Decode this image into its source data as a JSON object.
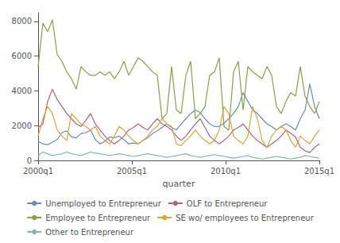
{
  "chart_data": {
    "type": "line",
    "xlabel": "quarter",
    "x": [
      0,
      1.016949,
      2.033898,
      3.050847,
      4.067797,
      5.084746,
      6.101695,
      7.118644,
      8.135593,
      9.152542,
      10.169492,
      11.186441,
      12.20339,
      13.220339,
      14.237288,
      15.254237,
      16.271186,
      17.288136,
      18.305085,
      19.322034,
      20.338983,
      21.355932,
      22.372881,
      23.389831,
      24.40678,
      25.423729,
      26.440678,
      27.457627,
      28.474576,
      29.491525,
      30.508475,
      31.525424,
      32.542373,
      33.559322,
      34.576271,
      35.59322,
      36.610169,
      37.627119,
      38.644068,
      39.661017,
      40.677966,
      41.694915,
      42.711864,
      43.728814,
      44.745763,
      45.762712,
      46.779661,
      47.79661,
      48.813559,
      49.830508,
      50.847458,
      51.864407,
      52.881356,
      53.898305,
      54.915254,
      55.932203,
      56.949153,
      57.966102,
      58.983051,
      60
    ],
    "xlim": [
      0,
      60
    ],
    "xticks": [
      {
        "value": 0,
        "label": "2000q1"
      },
      {
        "value": 20,
        "label": "2005q1"
      },
      {
        "value": 40,
        "label": "2010q1"
      },
      {
        "value": 60,
        "label": "2015q1"
      }
    ],
    "ylim": [
      0,
      8500
    ],
    "yticks": [
      0,
      2000,
      4000,
      6000,
      8000
    ],
    "grid": false,
    "legend": "bottom",
    "series": [
      {
        "name": "Unemployed to Entrepreneur",
        "color": "#6b8cba",
        "values": [
          1100,
          950,
          900,
          1050,
          1200,
          1600,
          1700,
          1350,
          1300,
          1550,
          1600,
          1750,
          1200,
          950,
          1100,
          1350,
          1300,
          1400,
          1200,
          950,
          1000,
          950,
          1150,
          1300,
          1550,
          1700,
          1900,
          2100,
          1900,
          1750,
          2100,
          2400,
          2700,
          2900,
          2750,
          2400,
          2100,
          1950,
          1950,
          2150,
          2400,
          2700,
          3100,
          3900,
          3400,
          2900,
          2700,
          2400,
          2100,
          1950,
          1750,
          1950,
          2100,
          1950,
          1750,
          2400,
          2900,
          4400,
          3100,
          2400
        ]
      },
      {
        "name": "OLF to Entrepreneur",
        "color": "#b06080",
        "values": [
          1900,
          2100,
          3400,
          4100,
          3500,
          3100,
          2700,
          2400,
          2100,
          1950,
          2300,
          2700,
          2100,
          1750,
          1400,
          1150,
          950,
          1150,
          1400,
          1750,
          1900,
          2100,
          1900,
          1750,
          2100,
          2400,
          2100,
          1950,
          1750,
          1400,
          1150,
          1400,
          1750,
          2100,
          2400,
          1900,
          1400,
          1150,
          950,
          1150,
          1400,
          1750,
          1900,
          2100,
          1750,
          1400,
          1150,
          950,
          750,
          950,
          1150,
          1400,
          1750,
          1550,
          1350,
          750,
          550,
          450,
          750,
          950
        ]
      },
      {
        "name": "Employee to Entrepreneur",
        "color": "#8a9e50",
        "values": [
          5400,
          7900,
          7400,
          8100,
          6100,
          5700,
          5100,
          4700,
          4100,
          5400,
          5100,
          4900,
          4900,
          5100,
          4900,
          5100,
          4700,
          5100,
          5700,
          4900,
          5400,
          5900,
          5700,
          5400,
          5100,
          4900,
          2400,
          2700,
          5400,
          2900,
          2700,
          4900,
          5700,
          2400,
          2700,
          3100,
          4900,
          5100,
          5900,
          1950,
          1750,
          5100,
          5700,
          2900,
          5400,
          5100,
          4900,
          4700,
          5400,
          4900,
          3100,
          2700,
          3400,
          3900,
          3700,
          5400,
          3700,
          3100,
          2700,
          3400
        ]
      },
      {
        "name": "SE wo/ employees to Entrepreneur",
        "color": "#d4a843",
        "values": [
          1400,
          2400,
          3100,
          2700,
          1750,
          1400,
          1150,
          2700,
          2400,
          2100,
          1950,
          1750,
          1950,
          1400,
          1150,
          950,
          1400,
          1950,
          1750,
          1400,
          1150,
          950,
          1150,
          1400,
          1750,
          1950,
          2400,
          2100,
          1950,
          950,
          850,
          1150,
          1400,
          1750,
          1400,
          1150,
          950,
          1150,
          1750,
          3100,
          2700,
          1400,
          1150,
          950,
          1400,
          3100,
          2400,
          1150,
          750,
          1400,
          1750,
          1950,
          1750,
          1150,
          750,
          1400,
          1150,
          950,
          1400,
          1750
        ]
      },
      {
        "name": "Other to Entrepreneur",
        "color": "#82b8b2",
        "values": [
          280,
          480,
          380,
          280,
          330,
          380,
          480,
          380,
          330,
          280,
          380,
          480,
          430,
          380,
          330,
          280,
          330,
          380,
          330,
          280,
          230,
          280,
          330,
          380,
          330,
          280,
          230,
          180,
          230,
          280,
          330,
          380,
          280,
          230,
          180,
          230,
          280,
          330,
          280,
          230,
          180,
          130,
          180,
          230,
          280,
          180,
          130,
          80,
          130,
          180,
          230,
          180,
          130,
          80,
          130,
          180,
          280,
          230,
          180,
          130
        ]
      }
    ]
  }
}
